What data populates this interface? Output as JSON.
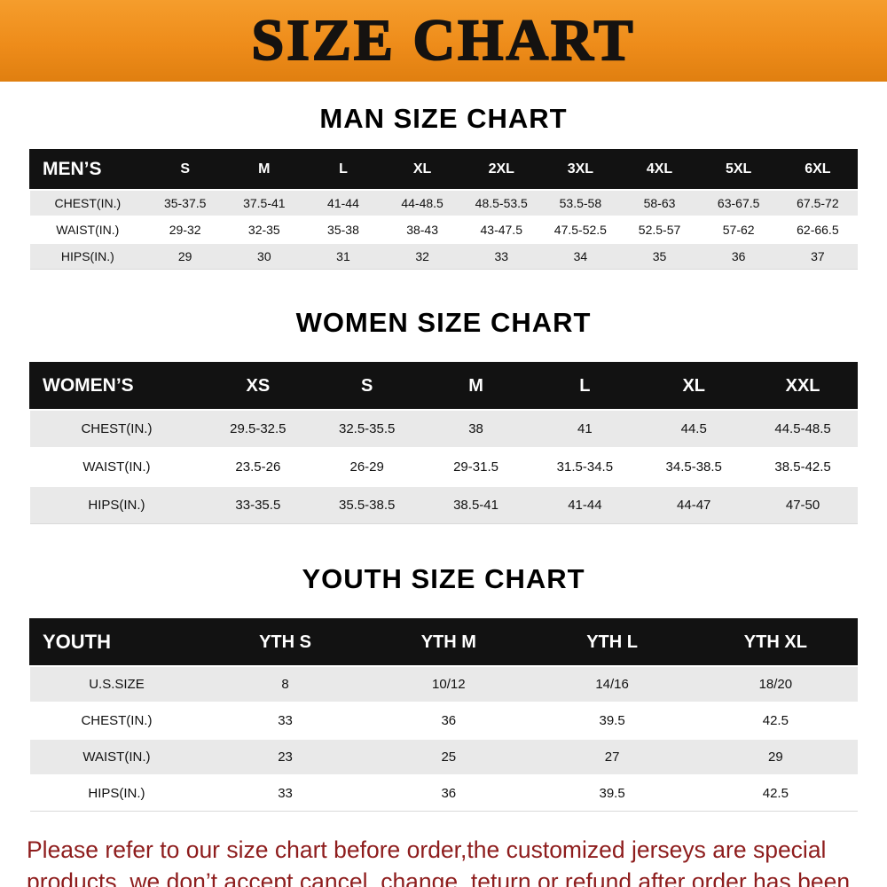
{
  "banner": {
    "title": "SIZE CHART",
    "bg_color": "#ee8c1a",
    "text_color": "#151210"
  },
  "sections": {
    "men": {
      "heading": "MAN SIZE CHART",
      "table": {
        "header": [
          "MEN’S",
          "S",
          "M",
          "L",
          "XL",
          "2XL",
          "3XL",
          "4XL",
          "5XL",
          "6XL"
        ],
        "rows": [
          [
            "CHEST(IN.)",
            "35-37.5",
            "37.5-41",
            "41-44",
            "44-48.5",
            "48.5-53.5",
            "53.5-58",
            "58-63",
            "63-67.5",
            "67.5-72"
          ],
          [
            "WAIST(IN.)",
            "29-32",
            "32-35",
            "35-38",
            "38-43",
            "43-47.5",
            "47.5-52.5",
            "52.5-57",
            "57-62",
            "62-66.5"
          ],
          [
            "HIPS(IN.)",
            "29",
            "30",
            "31",
            "32",
            "33",
            "34",
            "35",
            "36",
            "37"
          ]
        ]
      }
    },
    "women": {
      "heading": "WOMEN SIZE CHART",
      "table": {
        "header": [
          "WOMEN’S",
          "XS",
          "S",
          "M",
          "L",
          "XL",
          "XXL"
        ],
        "rows": [
          [
            "CHEST(IN.)",
            "29.5-32.5",
            "32.5-35.5",
            "38",
            "41",
            "44.5",
            "44.5-48.5"
          ],
          [
            "WAIST(IN.)",
            "23.5-26",
            "26-29",
            "29-31.5",
            "31.5-34.5",
            "34.5-38.5",
            "38.5-42.5"
          ],
          [
            "HIPS(IN.)",
            "33-35.5",
            "35.5-38.5",
            "38.5-41",
            "41-44",
            "44-47",
            "47-50"
          ]
        ]
      }
    },
    "youth": {
      "heading": "YOUTH SIZE CHART",
      "table": {
        "header": [
          "YOUTH",
          "YTH S",
          "YTH M",
          "YTH L",
          "YTH XL"
        ],
        "rows": [
          [
            "U.S.SIZE",
            "8",
            "10/12",
            "14/16",
            "18/20"
          ],
          [
            "CHEST(IN.)",
            "33",
            "36",
            "39.5",
            "42.5"
          ],
          [
            "WAIST(IN.)",
            "23",
            "25",
            "27",
            "29"
          ],
          [
            "HIPS(IN.)",
            "33",
            "36",
            "39.5",
            "42.5"
          ]
        ]
      }
    }
  },
  "footer": {
    "note": "Please refer to our size chart before order,the customized jerseys are special products, we don’t accept cancel, change, teturn or refund after order has been placed!",
    "text_color": "#8e1d1d"
  }
}
